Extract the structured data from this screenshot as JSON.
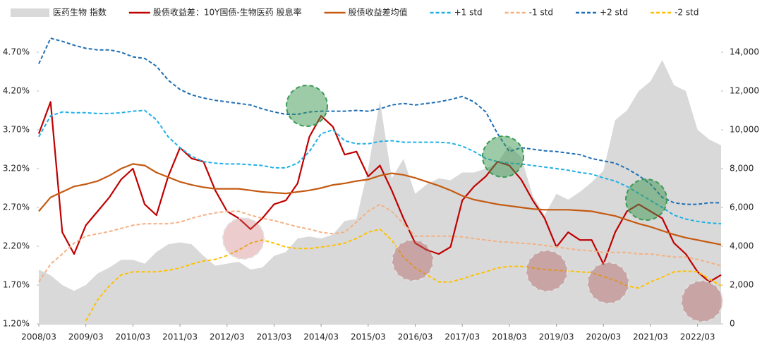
{
  "chart_data": {
    "type": "line",
    "legend": "top",
    "categories": [
      "2008/03",
      null,
      null,
      null,
      "2009/03",
      null,
      null,
      null,
      "2010/03",
      null,
      null,
      null,
      "2011/03",
      null,
      null,
      null,
      "2012/03",
      null,
      null,
      null,
      "2013/03",
      null,
      null,
      null,
      "2014/03",
      null,
      null,
      null,
      "2015/03",
      null,
      null,
      null,
      "2016/03",
      null,
      null,
      null,
      "2017/03",
      null,
      null,
      null,
      "2018/03",
      null,
      null,
      null,
      "2019/03",
      null,
      null,
      null,
      "2020/03",
      null,
      null,
      null,
      "2021/03",
      null,
      null,
      null,
      "2022/03",
      null,
      null
    ],
    "ylim": [
      1.2,
      5.2
    ],
    "yticks": [
      {
        "value": 1.2,
        "label": "1.20%"
      },
      {
        "value": 1.7,
        "label": "1.70%"
      },
      {
        "value": 2.2,
        "label": "2.20%"
      },
      {
        "value": 2.7,
        "label": "2.70%"
      },
      {
        "value": 3.2,
        "label": "3.20%"
      },
      {
        "value": 3.7,
        "label": "3.70%"
      },
      {
        "value": 4.2,
        "label": "4.20%"
      },
      {
        "value": 4.7,
        "label": "4.70%"
      }
    ],
    "y2lim": [
      0,
      16000
    ],
    "y2ticks": [
      0,
      {
        "value": 2000,
        "label": "2,000"
      },
      {
        "value": 4000,
        "label": "4,000"
      },
      {
        "value": 6000,
        "label": "6,000"
      },
      {
        "value": 8000,
        "label": "8,000"
      },
      {
        "value": 10000,
        "label": "10,000"
      },
      {
        "value": 12000,
        "label": "12,000"
      },
      {
        "value": 14000,
        "label": "14,000"
      }
    ],
    "series": [
      {
        "name": "医药生物 指数",
        "color": "#d9d9d9",
        "kind": "area",
        "axis": "y2",
        "values": [
          2800,
          2500,
          2000,
          1700,
          2000,
          2600,
          2900,
          3300,
          3300,
          3100,
          3700,
          4100,
          4200,
          4100,
          3500,
          3000,
          3100,
          3200,
          2800,
          2900,
          3500,
          3700,
          4400,
          4500,
          4400,
          4600,
          5300,
          5400,
          8000,
          11500,
          7500,
          8500,
          6700,
          7200,
          7500,
          7400,
          7800,
          7800,
          8000,
          8300,
          9200,
          8600,
          6600,
          5600,
          6700,
          6400,
          6800,
          7300,
          7900,
          10500,
          11000,
          12000,
          12500,
          13600,
          12300,
          12000,
          10000,
          9500,
          9200
        ]
      },
      {
        "name": "股债收益差：10Y国债-生物医药 股息率",
        "color": "#c00000",
        "kind": "line",
        "dashed": false,
        "values": [
          3.65,
          4.06,
          2.38,
          2.1,
          2.47,
          2.65,
          2.83,
          3.06,
          3.2,
          2.74,
          2.6,
          3.1,
          3.47,
          3.33,
          3.29,
          2.92,
          2.65,
          2.56,
          2.42,
          2.56,
          2.74,
          2.79,
          3.01,
          3.61,
          3.88,
          3.74,
          3.38,
          3.42,
          3.1,
          3.24,
          2.92,
          2.56,
          2.24,
          2.15,
          2.1,
          2.19,
          2.79,
          2.97,
          3.1,
          3.29,
          3.24,
          3.06,
          2.79,
          2.56,
          2.19,
          2.38,
          2.28,
          2.28,
          1.97,
          2.38,
          2.65,
          2.74,
          2.65,
          2.56,
          2.24,
          2.1,
          1.87,
          1.74,
          1.83
        ]
      },
      {
        "name": "股债收益差均值",
        "color": "#c55a11",
        "kind": "line",
        "dashed": false,
        "values": [
          2.65,
          2.83,
          2.9,
          2.97,
          3.0,
          3.04,
          3.11,
          3.2,
          3.26,
          3.24,
          3.15,
          3.09,
          3.03,
          2.99,
          2.96,
          2.94,
          2.94,
          2.94,
          2.92,
          2.9,
          2.89,
          2.88,
          2.9,
          2.92,
          2.95,
          2.99,
          3.01,
          3.04,
          3.06,
          3.11,
          3.14,
          3.12,
          3.08,
          3.03,
          2.98,
          2.92,
          2.85,
          2.8,
          2.77,
          2.74,
          2.72,
          2.7,
          2.68,
          2.67,
          2.67,
          2.67,
          2.66,
          2.65,
          2.62,
          2.59,
          2.54,
          2.49,
          2.45,
          2.4,
          2.35,
          2.31,
          2.28,
          2.25,
          2.22
        ]
      },
      {
        "name": "+1 std",
        "color": "#1fb0e6",
        "kind": "line",
        "dashed": true,
        "values": [
          3.61,
          3.88,
          3.93,
          3.92,
          3.92,
          3.91,
          3.91,
          3.92,
          3.94,
          3.95,
          3.83,
          3.61,
          3.47,
          3.36,
          3.29,
          3.27,
          3.26,
          3.26,
          3.25,
          3.24,
          3.21,
          3.21,
          3.27,
          3.42,
          3.65,
          3.7,
          3.56,
          3.52,
          3.52,
          3.55,
          3.56,
          3.54,
          3.54,
          3.54,
          3.54,
          3.53,
          3.49,
          3.42,
          3.33,
          3.29,
          3.27,
          3.26,
          3.24,
          3.22,
          3.2,
          3.18,
          3.15,
          3.13,
          3.08,
          3.04,
          2.97,
          2.88,
          2.79,
          2.7,
          2.6,
          2.55,
          2.52,
          2.5,
          2.49
        ]
      },
      {
        "name": "-1 std",
        "color": "#f4b183",
        "kind": "line",
        "dashed": true,
        "values": [
          1.74,
          1.97,
          2.1,
          2.24,
          2.33,
          2.36,
          2.39,
          2.43,
          2.47,
          2.49,
          2.49,
          2.49,
          2.51,
          2.56,
          2.6,
          2.63,
          2.65,
          2.65,
          2.6,
          2.56,
          2.53,
          2.49,
          2.45,
          2.42,
          2.38,
          2.36,
          2.38,
          2.51,
          2.65,
          2.74,
          2.65,
          2.49,
          2.33,
          2.33,
          2.33,
          2.33,
          2.32,
          2.3,
          2.28,
          2.26,
          2.25,
          2.24,
          2.23,
          2.21,
          2.19,
          2.17,
          2.15,
          2.14,
          2.12,
          2.12,
          2.12,
          2.1,
          2.1,
          2.08,
          2.06,
          2.06,
          2.03,
          1.99,
          1.95
        ]
      },
      {
        "name": "+2 std",
        "color": "#1f6eb4",
        "kind": "line",
        "dashed": true,
        "values": [
          4.55,
          4.88,
          4.84,
          4.79,
          4.75,
          4.73,
          4.73,
          4.7,
          4.64,
          4.62,
          4.52,
          4.34,
          4.22,
          4.15,
          4.11,
          4.08,
          4.06,
          4.04,
          4.02,
          3.97,
          3.93,
          3.9,
          3.9,
          3.93,
          3.94,
          3.94,
          3.94,
          3.95,
          3.94,
          3.97,
          4.02,
          4.04,
          4.02,
          4.04,
          4.06,
          4.09,
          4.13,
          4.06,
          3.93,
          3.65,
          3.42,
          3.47,
          3.45,
          3.43,
          3.42,
          3.4,
          3.38,
          3.33,
          3.3,
          3.27,
          3.2,
          3.11,
          3.0,
          2.83,
          2.76,
          2.74,
          2.74,
          2.76,
          2.76
        ]
      },
      {
        "name": "-2 std",
        "color": "#ffc000",
        "kind": "line",
        "dashed": true,
        "values": [
          null,
          null,
          null,
          null,
          1.24,
          1.51,
          1.69,
          1.83,
          1.87,
          1.87,
          1.87,
          1.89,
          1.92,
          1.97,
          2.01,
          2.03,
          2.08,
          2.15,
          2.24,
          2.28,
          2.24,
          2.19,
          2.17,
          2.17,
          2.19,
          2.21,
          2.24,
          2.3,
          2.38,
          2.42,
          2.28,
          2.06,
          1.92,
          1.83,
          1.74,
          1.74,
          1.78,
          1.83,
          1.87,
          1.92,
          1.94,
          1.94,
          1.92,
          1.9,
          1.89,
          1.88,
          1.87,
          1.86,
          1.81,
          1.76,
          1.69,
          1.66,
          1.74,
          1.8,
          1.87,
          1.88,
          1.87,
          1.78,
          1.69
        ]
      }
    ]
  }
}
